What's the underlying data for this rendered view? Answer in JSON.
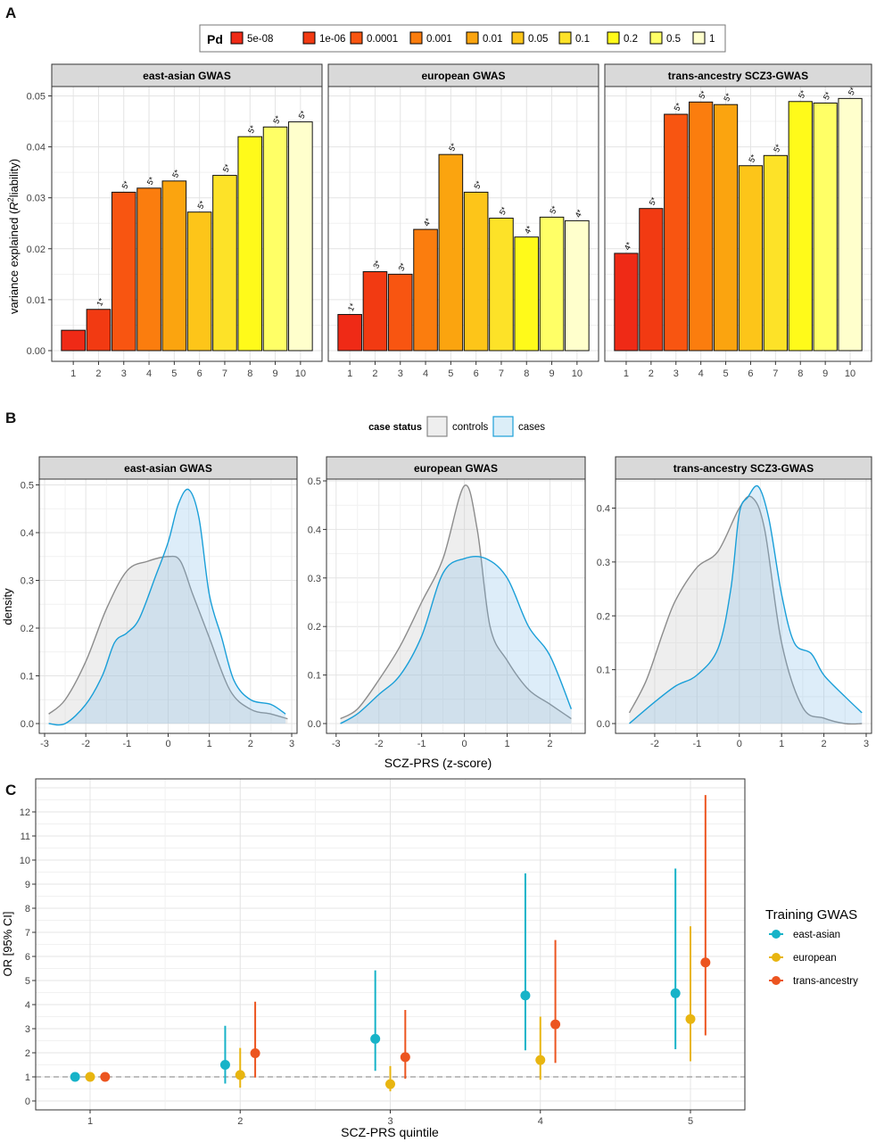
{
  "panel_labels": [
    "A",
    "B",
    "C"
  ],
  "chart_data": [
    {
      "type": "bar",
      "panel": "A",
      "legend": {
        "title": "Pd",
        "position": "top",
        "entries": [
          {
            "label": "5e-08",
            "color": "#ef2a16"
          },
          {
            "label": "1e-06",
            "color": "#f23a12"
          },
          {
            "label": "0.0001",
            "color": "#f85511"
          },
          {
            "label": "0.001",
            "color": "#fb7d0e"
          },
          {
            "label": "0.01",
            "color": "#fba40f"
          },
          {
            "label": "0.05",
            "color": "#fdc519"
          },
          {
            "label": "0.1",
            "color": "#fde228"
          },
          {
            "label": "0.2",
            "color": "#fffa1a"
          },
          {
            "label": "0.5",
            "color": "#ffff66"
          },
          {
            "label": "1",
            "color": "#ffffcc"
          }
        ]
      },
      "ylabel": "variance explained (R² liability)",
      "ylabel_main": "variance explained (",
      "ylabel_r": "R",
      "ylabel_sup": "2",
      "ylabel_end": "liability)",
      "ylim": [
        0,
        0.05
      ],
      "yticks": [
        "0.00",
        "0.01",
        "0.02",
        "0.03",
        "0.04",
        "0.05"
      ],
      "categories": [
        "1",
        "2",
        "3",
        "4",
        "5",
        "6",
        "7",
        "8",
        "9",
        "10"
      ],
      "grid": true,
      "facets": [
        {
          "title": "east-asian GWAS",
          "values": [
            0.004,
            0.0081,
            0.0311,
            0.0319,
            0.0333,
            0.0272,
            0.0344,
            0.042,
            0.0439,
            0.0449
          ],
          "annotations": [
            "",
            "1*",
            "5*",
            "5*",
            "5*",
            "5*",
            "5*",
            "5*",
            "5*",
            "5*"
          ]
        },
        {
          "title": "european GWAS",
          "values": [
            0.0071,
            0.0155,
            0.015,
            0.0238,
            0.0385,
            0.0311,
            0.026,
            0.0223,
            0.0262,
            0.0255
          ],
          "annotations": [
            "1*",
            "3*",
            "3*",
            "4*",
            "5*",
            "5*",
            "5*",
            "4*",
            "5*",
            "4*"
          ]
        },
        {
          "title": "trans-ancestry SCZ3-GWAS",
          "values": [
            0.0191,
            0.0279,
            0.0464,
            0.0488,
            0.0483,
            0.0363,
            0.0383,
            0.0489,
            0.0486,
            0.0495
          ],
          "annotations": [
            "4*",
            "5*",
            "5*",
            "5*",
            "5*",
            "5*",
            "5*",
            "5*",
            "5*",
            "5*"
          ]
        }
      ]
    },
    {
      "type": "area",
      "panel": "B",
      "legend": {
        "title": "case status",
        "position": "top",
        "entries": [
          {
            "label": "controls",
            "color": "#888888",
            "fill": "#eeeeee"
          },
          {
            "label": "cases",
            "color": "#1a9fd8",
            "fill": "#dceef8"
          }
        ]
      },
      "xlabel": "SCZ-PRS (z-score)",
      "ylabel": "density",
      "grid": true,
      "facets": [
        {
          "title": "east-asian GWAS",
          "xlim": [
            -3,
            3
          ],
          "ylim": [
            0,
            0.5
          ],
          "xticks": [
            "-3",
            "-2",
            "-1",
            "0",
            "1",
            "2",
            "3"
          ],
          "yticks": [
            "0.0",
            "0.1",
            "0.2",
            "0.3",
            "0.4",
            "0.5"
          ],
          "series": [
            {
              "name": "controls",
              "x": [
                -2.9,
                -2.5,
                -2,
                -1.5,
                -1,
                -0.5,
                0,
                0.3,
                0.6,
                1,
                1.5,
                2,
                2.5,
                2.9
              ],
              "y": [
                0.02,
                0.05,
                0.13,
                0.24,
                0.32,
                0.34,
                0.35,
                0.34,
                0.27,
                0.18,
                0.07,
                0.03,
                0.02,
                0.01
              ]
            },
            {
              "name": "cases",
              "x": [
                -2.9,
                -2.5,
                -2,
                -1.6,
                -1.3,
                -1,
                -0.7,
                -0.3,
                0,
                0.25,
                0.5,
                0.75,
                1,
                1.3,
                1.6,
                2,
                2.5,
                2.85
              ],
              "y": [
                0.0,
                0.0,
                0.04,
                0.1,
                0.17,
                0.19,
                0.22,
                0.31,
                0.38,
                0.46,
                0.49,
                0.43,
                0.27,
                0.18,
                0.09,
                0.05,
                0.04,
                0.02
              ]
            }
          ]
        },
        {
          "title": "european GWAS",
          "xlim": [
            -3.1,
            2.7
          ],
          "ylim": [
            0,
            0.5
          ],
          "xticks": [
            "-3",
            "-2",
            "-1",
            "0",
            "1",
            "2"
          ],
          "yticks": [
            "0.0",
            "0.1",
            "0.2",
            "0.3",
            "0.4",
            "0.5"
          ],
          "series": [
            {
              "name": "controls",
              "x": [
                -2.9,
                -2.5,
                -2,
                -1.5,
                -1,
                -0.5,
                0,
                0.3,
                0.6,
                1,
                1.5,
                2,
                2.5
              ],
              "y": [
                0.01,
                0.03,
                0.09,
                0.16,
                0.25,
                0.34,
                0.49,
                0.4,
                0.2,
                0.13,
                0.07,
                0.04,
                0.01
              ]
            },
            {
              "name": "cases",
              "x": [
                -2.9,
                -2.5,
                -2,
                -1.5,
                -1,
                -0.5,
                0,
                0.5,
                1,
                1.5,
                2,
                2.5
              ],
              "y": [
                0.0,
                0.02,
                0.06,
                0.1,
                0.18,
                0.31,
                0.34,
                0.34,
                0.3,
                0.2,
                0.14,
                0.03
              ]
            }
          ]
        },
        {
          "title": "trans-ancestry SCZ3-GWAS",
          "xlim": [
            -2.8,
            3
          ],
          "ylim": [
            0,
            0.45
          ],
          "xticks": [
            "-2",
            "-1",
            "0",
            "1",
            "2",
            "3"
          ],
          "yticks": [
            "0.0",
            "0.1",
            "0.2",
            "0.3",
            "0.4"
          ],
          "series": [
            {
              "name": "controls",
              "x": [
                -2.6,
                -2.2,
                -1.8,
                -1.5,
                -1,
                -0.5,
                0,
                0.3,
                0.6,
                1,
                1.5,
                2,
                2.5,
                2.9
              ],
              "y": [
                0.02,
                0.08,
                0.17,
                0.23,
                0.29,
                0.32,
                0.4,
                0.42,
                0.36,
                0.15,
                0.03,
                0.01,
                0.0,
                0.0
              ]
            },
            {
              "name": "cases",
              "x": [
                -2.6,
                -2,
                -1.5,
                -1,
                -0.5,
                -0.2,
                0,
                0.2,
                0.45,
                0.7,
                1,
                1.3,
                1.7,
                2,
                2.5,
                2.9
              ],
              "y": [
                0.0,
                0.04,
                0.07,
                0.09,
                0.14,
                0.25,
                0.39,
                0.42,
                0.44,
                0.38,
                0.24,
                0.15,
                0.13,
                0.09,
                0.05,
                0.02
              ]
            }
          ]
        }
      ]
    },
    {
      "type": "scatter",
      "panel": "C",
      "xlabel": "SCZ-PRS quintile",
      "ylabel": "OR [95% CI]",
      "xlim": [
        0.65,
        5.4
      ],
      "ylim": [
        -0.2,
        13.2
      ],
      "categories": [
        "1",
        "2",
        "3",
        "4",
        "5"
      ],
      "yticks": [
        "0",
        "1",
        "2",
        "3",
        "4",
        "5",
        "6",
        "7",
        "8",
        "9",
        "10",
        "11",
        "12"
      ],
      "reference_line": 1,
      "grid": true,
      "legend": {
        "title": "Training GWAS",
        "position": "right"
      },
      "series": [
        {
          "name": "east-asian",
          "color": "#17b3c8",
          "x": [
            0.9,
            1.9,
            2.9,
            3.9,
            4.9
          ],
          "values": [
            1.0,
            1.5,
            2.58,
            4.38,
            4.47
          ],
          "lower": [
            1.0,
            0.72,
            1.25,
            2.1,
            2.15
          ],
          "upper": [
            1.0,
            3.12,
            5.42,
            9.45,
            9.65
          ]
        },
        {
          "name": "european",
          "color": "#e8b510",
          "x": [
            1.0,
            2.0,
            3.0,
            4.0,
            5.0
          ],
          "values": [
            1.0,
            1.08,
            0.7,
            1.7,
            3.4
          ],
          "lower": [
            1.0,
            0.55,
            0.4,
            0.88,
            1.65
          ],
          "upper": [
            1.0,
            2.2,
            1.45,
            3.5,
            7.25
          ]
        },
        {
          "name": "trans-ancestry",
          "color": "#ec5520",
          "x": [
            1.1,
            2.1,
            3.1,
            4.1,
            5.1
          ],
          "values": [
            1.0,
            1.98,
            1.82,
            3.18,
            5.75
          ],
          "lower": [
            1.0,
            0.97,
            0.92,
            1.58,
            2.72
          ],
          "upper": [
            1.0,
            4.12,
            3.78,
            6.68,
            12.7
          ]
        }
      ]
    }
  ]
}
